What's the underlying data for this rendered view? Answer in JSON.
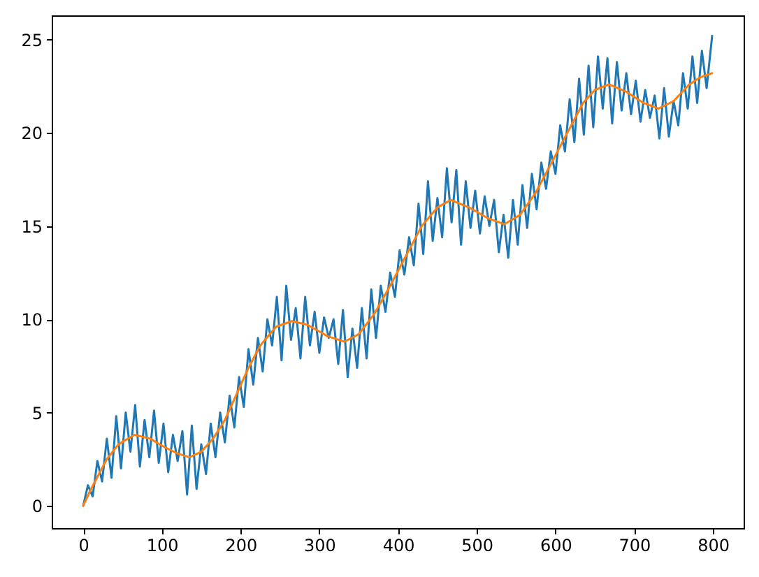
{
  "chart_data": {
    "type": "line",
    "series": [
      {
        "color": "#1f77b4",
        "x": [
          0,
          6,
          12,
          18,
          24,
          30,
          36,
          42,
          48,
          54,
          60,
          66,
          72,
          78,
          84,
          90,
          96,
          102,
          108,
          114,
          120,
          126,
          132,
          138,
          144,
          150,
          156,
          162,
          168,
          174,
          180,
          186,
          192,
          198,
          204,
          210,
          216,
          222,
          228,
          234,
          240,
          246,
          252,
          258,
          264,
          270,
          276,
          282,
          288,
          294,
          300,
          306,
          312,
          318,
          324,
          330,
          336,
          342,
          348,
          354,
          360,
          366,
          372,
          378,
          384,
          390,
          396,
          402,
          408,
          414,
          420,
          426,
          432,
          438,
          444,
          450,
          456,
          462,
          468,
          474,
          480,
          486,
          492,
          498,
          504,
          510,
          516,
          522,
          528,
          534,
          540,
          546,
          552,
          558,
          564,
          570,
          576,
          582,
          588,
          594,
          600,
          606,
          612,
          618,
          624,
          630,
          636,
          642,
          648,
          654,
          660,
          666,
          672,
          678,
          684,
          690,
          696,
          702,
          708,
          714,
          720,
          726,
          732,
          738,
          744,
          750,
          756,
          762,
          768,
          774,
          780,
          786,
          792,
          799
        ],
        "values": [
          0.0,
          1.1,
          0.5,
          2.4,
          1.3,
          3.6,
          1.5,
          4.8,
          2.0,
          5.0,
          2.9,
          5.4,
          2.1,
          4.6,
          2.6,
          5.1,
          2.3,
          4.4,
          1.8,
          3.8,
          2.4,
          4.0,
          0.6,
          4.3,
          0.9,
          3.3,
          1.7,
          4.4,
          2.6,
          5.0,
          3.4,
          5.9,
          4.2,
          6.9,
          5.3,
          8.4,
          6.5,
          9.0,
          7.2,
          10.0,
          8.6,
          11.2,
          7.8,
          11.8,
          8.9,
          10.6,
          7.9,
          11.2,
          8.6,
          10.4,
          8.2,
          10.1,
          9.0,
          10.0,
          7.6,
          10.5,
          6.9,
          9.5,
          7.4,
          10.6,
          7.9,
          11.6,
          9.0,
          11.8,
          10.4,
          12.5,
          11.2,
          13.7,
          12.4,
          14.4,
          12.9,
          16.2,
          13.5,
          17.4,
          14.2,
          16.5,
          14.4,
          18.1,
          15.2,
          18.0,
          14.0,
          17.4,
          14.9,
          16.9,
          14.6,
          16.6,
          15.0,
          16.4,
          13.6,
          15.6,
          13.3,
          16.4,
          14.0,
          17.2,
          14.9,
          17.8,
          15.9,
          18.4,
          17.0,
          19.0,
          17.8,
          20.4,
          19.0,
          21.8,
          19.5,
          22.9,
          19.9,
          23.6,
          20.3,
          24.1,
          21.3,
          24.0,
          20.5,
          23.8,
          21.2,
          23.2,
          21.0,
          22.8,
          20.6,
          22.3,
          20.8,
          22.0,
          19.7,
          22.4,
          19.8,
          21.7,
          20.4,
          23.2,
          21.3,
          24.1,
          21.6,
          24.4,
          22.4,
          25.2
        ]
      },
      {
        "color": "#ff7f0e",
        "x": [
          0,
          10,
          20,
          30,
          45,
          65,
          85,
          105,
          120,
          135,
          150,
          165,
          180,
          195,
          210,
          225,
          245,
          265,
          285,
          310,
          332,
          350,
          370,
          390,
          410,
          430,
          450,
          467,
          490,
          515,
          535,
          555,
          575,
          595,
          615,
          635,
          650,
          668,
          690,
          712,
          731,
          750,
          770,
          785,
          799
        ],
        "values": [
          0.0,
          0.9,
          1.7,
          2.5,
          3.3,
          3.8,
          3.6,
          3.1,
          2.8,
          2.6,
          2.9,
          3.6,
          4.6,
          6.0,
          7.4,
          8.6,
          9.6,
          9.9,
          9.7,
          9.1,
          8.8,
          9.2,
          10.3,
          11.8,
          13.4,
          15.0,
          16.0,
          16.4,
          16.0,
          15.4,
          15.1,
          15.6,
          16.8,
          18.4,
          20.0,
          21.6,
          22.3,
          22.6,
          22.2,
          21.6,
          21.3,
          21.7,
          22.6,
          23.0,
          23.2
        ]
      }
    ],
    "xlim": [
      -40,
      839
    ],
    "ylim": [
      -1.2,
      26.3
    ],
    "xticks": [
      0,
      100,
      200,
      300,
      400,
      500,
      600,
      700,
      800
    ],
    "yticks": [
      0,
      5,
      10,
      15,
      20,
      25
    ]
  }
}
